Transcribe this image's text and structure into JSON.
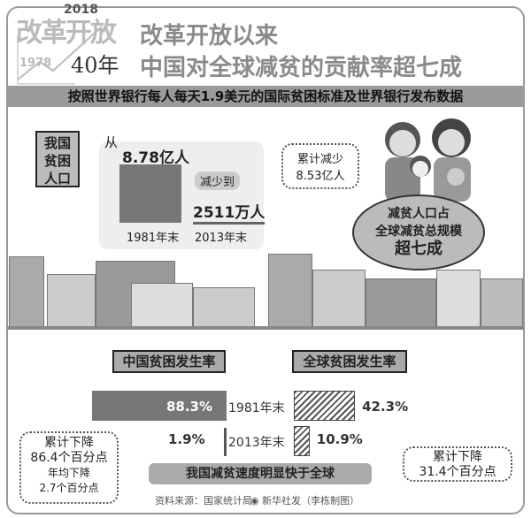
{
  "logo": {
    "chars": "改革开放",
    "year_end": "2018",
    "year_start": "1978",
    "anniversary": "40年"
  },
  "title": {
    "line1": "改革开放以来",
    "line2": "中国对全球减贫的贡献率超七成"
  },
  "banner": "按照世界银行每人每天1.9美元的国际贫困标准及世界银行发布数据",
  "population": {
    "label": "我国贫困人口",
    "from": "从",
    "value_1981": "8.78亿人",
    "reduced_to": "减少到",
    "value_2013": "2511万人",
    "year1": "1981年末",
    "year2": "2013年末"
  },
  "cumulative_reduction": {
    "line1": "累计减少",
    "line2": "8.53亿人"
  },
  "share": {
    "line1": "减贫人口占",
    "line2": "全球减贫总规模",
    "line3": "超七成"
  },
  "rates": {
    "china_label": "中国贫困发生率",
    "global_label": "全球贫困发生率"
  },
  "left_note": {
    "line1": "累计下降",
    "line2": "86.4个百分点",
    "line3": "年均下降",
    "line4": "2.7个百分点"
  },
  "right_note": {
    "line1": "累计下降",
    "line2": "31.4个百分点"
  },
  "conclusion": "我国减贫速度明显快于全球",
  "source": "资料来源：国家统计局",
  "credit": "新华社发（李栋制图）",
  "colors": {
    "china_bar": "#777777",
    "global_bar": "hatched",
    "banner": "#9a9a9a"
  },
  "chart_data": {
    "type": "bar",
    "categories": [
      "1981年末",
      "2013年末"
    ],
    "series": [
      {
        "name": "中国贫困发生率",
        "values": [
          88.3,
          1.9
        ],
        "labels": [
          "88.3%",
          "1.9%"
        ]
      },
      {
        "name": "全球贫困发生率",
        "values": [
          42.3,
          10.9
        ],
        "labels": [
          "42.3%",
          "10.9%"
        ]
      }
    ],
    "unit": "%"
  }
}
